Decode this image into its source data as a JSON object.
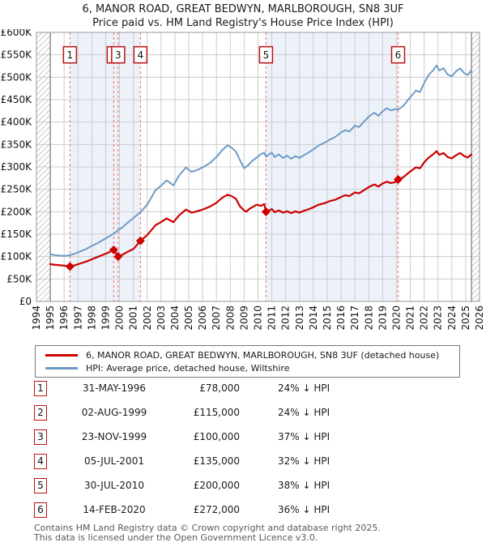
{
  "title": "6, MANOR ROAD, GREAT BEDWYN, MARLBOROUGH, SN8 3UF",
  "subtitle": "Price paid vs. HM Land Registry's House Price Index (HPI)",
  "legend": [
    {
      "label": "6, MANOR ROAD, GREAT BEDWYN, MARLBOROUGH, SN8 3UF (detached house)",
      "color": "#cc0000"
    },
    {
      "label": "HPI: Average price, detached house, Wiltshire",
      "color": "#6d9bc7"
    }
  ],
  "transactions": [
    {
      "num": "1",
      "date": "31-MAY-1996",
      "price": "£78,000",
      "pct": "24% ↓ HPI"
    },
    {
      "num": "2",
      "date": "02-AUG-1999",
      "price": "£115,000",
      "pct": "24% ↓ HPI"
    },
    {
      "num": "3",
      "date": "23-NOV-1999",
      "price": "£100,000",
      "pct": "37% ↓ HPI"
    },
    {
      "num": "4",
      "date": "05-JUL-2001",
      "price": "£135,000",
      "pct": "32% ↓ HPI"
    },
    {
      "num": "5",
      "date": "30-JUL-2010",
      "price": "£200,000",
      "pct": "38% ↓ HPI"
    },
    {
      "num": "6",
      "date": "14-FEB-2020",
      "price": "£272,000",
      "pct": "36% ↓ HPI"
    }
  ],
  "footer": {
    "line1": "Contains HM Land Registry data © Crown copyright and database right 2025.",
    "line2": "This data is licensed under the Open Government Licence v3.0."
  },
  "chart_data": {
    "type": "line",
    "x_range": [
      1994,
      2026
    ],
    "y_range": [
      0,
      600000
    ],
    "y_tick_step": 50000,
    "y_tick_labels": [
      "£0",
      "£50K",
      "£100K",
      "£150K",
      "£200K",
      "£250K",
      "£300K",
      "£350K",
      "£400K",
      "£450K",
      "£500K",
      "£550K",
      "£600K"
    ],
    "x_tick_labels": [
      "1994",
      "1995",
      "1996",
      "1997",
      "1998",
      "1999",
      "2000",
      "2001",
      "2002",
      "2003",
      "2004",
      "2005",
      "2006",
      "2007",
      "2008",
      "2009",
      "2010",
      "2011",
      "2012",
      "2013",
      "2014",
      "2015",
      "2016",
      "2017",
      "2018",
      "2019",
      "2020",
      "2021",
      "2022",
      "2023",
      "2024",
      "2025",
      "2026"
    ],
    "data_start": 1995.0,
    "data_end": 2025.42,
    "ownership_bands": [
      [
        1996.42,
        2001.51
      ],
      [
        2010.58,
        2020.12
      ]
    ],
    "sales": [
      {
        "n": "1",
        "x": 1996.42,
        "price": 78000
      },
      {
        "n": "2",
        "x": 1999.58,
        "price": 115000
      },
      {
        "n": "3",
        "x": 1999.9,
        "price": 100000
      },
      {
        "n": "4",
        "x": 2001.51,
        "price": 135000
      },
      {
        "n": "5",
        "x": 2010.58,
        "price": 200000
      },
      {
        "n": "6",
        "x": 2020.12,
        "price": 272000
      }
    ],
    "series": [
      {
        "name": "hpi_wiltshire_detached",
        "color": "#6d9bc7",
        "width": 2,
        "points": [
          [
            1995.0,
            105
          ],
          [
            1995.4,
            103
          ],
          [
            1995.8,
            102
          ],
          [
            1996.1,
            101.5
          ],
          [
            1996.42,
            103
          ],
          [
            1996.8,
            107
          ],
          [
            1997.2,
            112
          ],
          [
            1997.6,
            117
          ],
          [
            1998.0,
            124
          ],
          [
            1998.4,
            130
          ],
          [
            1998.8,
            137
          ],
          [
            1999.2,
            144
          ],
          [
            1999.58,
            151
          ],
          [
            1999.9,
            159
          ],
          [
            2000.2,
            165
          ],
          [
            2000.6,
            176
          ],
          [
            2001.0,
            186
          ],
          [
            2001.51,
            199
          ],
          [
            2002.0,
            216
          ],
          [
            2002.6,
            248
          ],
          [
            2003.0,
            258
          ],
          [
            2003.4,
            270
          ],
          [
            2003.9,
            259
          ],
          [
            2004.3,
            281
          ],
          [
            2004.8,
            299
          ],
          [
            2005.2,
            289
          ],
          [
            2005.6,
            293
          ],
          [
            2006.0,
            299
          ],
          [
            2006.5,
            308
          ],
          [
            2007.0,
            322
          ],
          [
            2007.4,
            337
          ],
          [
            2007.8,
            348
          ],
          [
            2008.1,
            343
          ],
          [
            2008.4,
            334
          ],
          [
            2008.7,
            315
          ],
          [
            2009.0,
            297
          ],
          [
            2009.3,
            304
          ],
          [
            2009.6,
            314
          ],
          [
            2009.9,
            321
          ],
          [
            2010.2,
            328
          ],
          [
            2010.45,
            332
          ],
          [
            2010.58,
            323
          ],
          [
            2010.8,
            328
          ],
          [
            2011.0,
            332
          ],
          [
            2011.2,
            322
          ],
          [
            2011.5,
            328
          ],
          [
            2011.8,
            320
          ],
          [
            2012.1,
            325
          ],
          [
            2012.4,
            318
          ],
          [
            2012.7,
            324
          ],
          [
            2013.0,
            320
          ],
          [
            2013.3,
            326
          ],
          [
            2013.6,
            331
          ],
          [
            2014.0,
            339
          ],
          [
            2014.4,
            348
          ],
          [
            2014.8,
            354
          ],
          [
            2015.2,
            361
          ],
          [
            2015.6,
            367
          ],
          [
            2016.0,
            377
          ],
          [
            2016.3,
            382
          ],
          [
            2016.6,
            379
          ],
          [
            2017.0,
            392
          ],
          [
            2017.3,
            389
          ],
          [
            2017.6,
            399
          ],
          [
            2018.0,
            412
          ],
          [
            2018.4,
            421
          ],
          [
            2018.7,
            414
          ],
          [
            2019.0,
            424
          ],
          [
            2019.3,
            431
          ],
          [
            2019.6,
            426
          ],
          [
            2019.9,
            429
          ],
          [
            2020.12,
            428
          ],
          [
            2020.5,
            436
          ],
          [
            2020.8,
            448
          ],
          [
            2021.1,
            459
          ],
          [
            2021.4,
            470
          ],
          [
            2021.7,
            467
          ],
          [
            2022.0,
            487
          ],
          [
            2022.3,
            504
          ],
          [
            2022.6,
            514
          ],
          [
            2022.9,
            526
          ],
          [
            2023.1,
            515
          ],
          [
            2023.4,
            520
          ],
          [
            2023.7,
            506
          ],
          [
            2024.0,
            502
          ],
          [
            2024.3,
            513
          ],
          [
            2024.6,
            520
          ],
          [
            2024.9,
            509
          ],
          [
            2025.15,
            505
          ],
          [
            2025.42,
            516
          ]
        ]
      },
      {
        "name": "price_paid_indexed",
        "color": "#cc0000",
        "width": 2.2,
        "points": [
          [
            1995.0,
            83
          ],
          [
            1995.4,
            81.5
          ],
          [
            1995.8,
            80.5
          ],
          [
            1996.1,
            79.5
          ],
          [
            1996.42,
            78
          ],
          [
            1996.8,
            81
          ],
          [
            1997.2,
            85
          ],
          [
            1997.6,
            89
          ],
          [
            1998.0,
            94
          ],
          [
            1998.4,
            99
          ],
          [
            1998.8,
            104
          ],
          [
            1999.2,
            109
          ],
          [
            1999.58,
            115
          ],
          [
            1999.9,
            100
          ],
          [
            2000.2,
            104
          ],
          [
            2000.6,
            111
          ],
          [
            2001.0,
            117
          ],
          [
            2001.51,
            135
          ],
          [
            2002.0,
            148
          ],
          [
            2002.6,
            170
          ],
          [
            2003.0,
            177
          ],
          [
            2003.4,
            185
          ],
          [
            2003.9,
            177
          ],
          [
            2004.3,
            192
          ],
          [
            2004.8,
            205
          ],
          [
            2005.2,
            198
          ],
          [
            2005.6,
            201
          ],
          [
            2006.0,
            205
          ],
          [
            2006.5,
            211
          ],
          [
            2007.0,
            220
          ],
          [
            2007.4,
            231
          ],
          [
            2007.8,
            238
          ],
          [
            2008.1,
            235
          ],
          [
            2008.4,
            229
          ],
          [
            2008.7,
            212
          ],
          [
            2009.0,
            203
          ],
          [
            2009.15,
            200
          ],
          [
            2009.4,
            207
          ],
          [
            2009.7,
            212
          ],
          [
            2009.9,
            216
          ],
          [
            2010.2,
            213
          ],
          [
            2010.45,
            217
          ],
          [
            2010.58,
            200
          ],
          [
            2010.8,
            203
          ],
          [
            2011.0,
            206
          ],
          [
            2011.2,
            199
          ],
          [
            2011.5,
            203
          ],
          [
            2011.8,
            198
          ],
          [
            2012.1,
            201
          ],
          [
            2012.4,
            197
          ],
          [
            2012.7,
            201
          ],
          [
            2013.0,
            198
          ],
          [
            2013.3,
            202
          ],
          [
            2013.6,
            205
          ],
          [
            2014.0,
            210
          ],
          [
            2014.4,
            216
          ],
          [
            2014.8,
            219
          ],
          [
            2015.2,
            224
          ],
          [
            2015.6,
            227
          ],
          [
            2016.0,
            233
          ],
          [
            2016.3,
            237
          ],
          [
            2016.6,
            235
          ],
          [
            2017.0,
            243
          ],
          [
            2017.3,
            241
          ],
          [
            2017.6,
            247
          ],
          [
            2018.0,
            255
          ],
          [
            2018.4,
            261
          ],
          [
            2018.7,
            256
          ],
          [
            2019.0,
            263
          ],
          [
            2019.3,
            267
          ],
          [
            2019.6,
            264
          ],
          [
            2019.9,
            266
          ],
          [
            2020.12,
            272
          ],
          [
            2020.5,
            277
          ],
          [
            2020.8,
            285
          ],
          [
            2021.1,
            292
          ],
          [
            2021.4,
            299
          ],
          [
            2021.7,
            297
          ],
          [
            2022.0,
            310
          ],
          [
            2022.3,
            320
          ],
          [
            2022.6,
            327
          ],
          [
            2022.9,
            335
          ],
          [
            2023.1,
            327
          ],
          [
            2023.4,
            331
          ],
          [
            2023.7,
            322
          ],
          [
            2024.0,
            319
          ],
          [
            2024.3,
            326
          ],
          [
            2024.6,
            331
          ],
          [
            2024.9,
            324
          ],
          [
            2025.15,
            321
          ],
          [
            2025.42,
            328
          ]
        ]
      }
    ],
    "colors": {
      "dashed_sale_line": "#f08080",
      "ownership_band": "#edf2fa",
      "grid": "#cccccc",
      "hatch": "#c9c9c9",
      "plot_border": "#999999",
      "data_edge_line": "#777777",
      "marker_box_border": "#bb1111"
    }
  }
}
